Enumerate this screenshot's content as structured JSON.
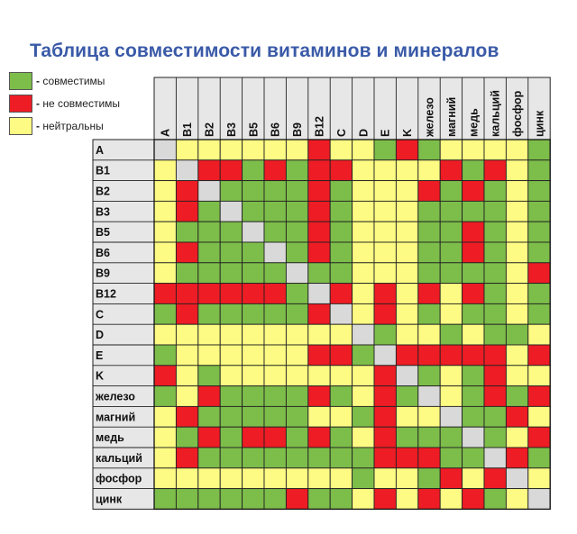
{
  "title": "Таблица совместимости витаминов и минералов",
  "legend": [
    {
      "color": "#7dbd4a",
      "dash": "-",
      "label": "совместимы"
    },
    {
      "color": "#ee1c24",
      "dash": "-",
      "label": "не совместимы"
    },
    {
      "color": "#fdfb83",
      "dash": "-",
      "label": "нейтральны"
    }
  ],
  "colors": {
    "compatible": "#7dbd4a",
    "incompatible": "#ee1c24",
    "neutral": "#fdfb83",
    "self": "#d9d9d9",
    "label_bg": "#e7e7e7"
  },
  "chart_data": {
    "type": "heatmap",
    "encoding": {
      "G": "совместимы",
      "R": "не совместимы",
      "Y": "нейтральны",
      "S": "-"
    },
    "column_labels": [
      "A",
      "B1",
      "B2",
      "B3",
      "B5",
      "B6",
      "B9",
      "B12",
      "C",
      "D",
      "E",
      "K",
      "железо",
      "магний",
      "медь",
      "кальций",
      "фосфор",
      "цинк"
    ],
    "row_labels": [
      "A",
      "B1",
      "B2",
      "B3",
      "B5",
      "B6",
      "B9",
      "B12",
      "C",
      "D",
      "E",
      "K",
      "железо",
      "магний",
      "медь",
      "кальций",
      "фосфор",
      "цинк"
    ],
    "rows": [
      [
        "S",
        "Y",
        "Y",
        "Y",
        "Y",
        "Y",
        "Y",
        "R",
        "Y",
        "Y",
        "G",
        "R",
        "G",
        "Y",
        "Y",
        "Y",
        "Y",
        "G"
      ],
      [
        "Y",
        "S",
        "R",
        "R",
        "G",
        "R",
        "G",
        "R",
        "R",
        "Y",
        "Y",
        "Y",
        "Y",
        "R",
        "G",
        "R",
        "Y",
        "G"
      ],
      [
        "Y",
        "R",
        "S",
        "G",
        "G",
        "G",
        "G",
        "R",
        "G",
        "Y",
        "Y",
        "Y",
        "R",
        "G",
        "R",
        "G",
        "Y",
        "G"
      ],
      [
        "Y",
        "R",
        "G",
        "S",
        "G",
        "G",
        "G",
        "R",
        "G",
        "Y",
        "Y",
        "Y",
        "G",
        "G",
        "G",
        "G",
        "Y",
        "G"
      ],
      [
        "Y",
        "G",
        "G",
        "G",
        "S",
        "G",
        "G",
        "R",
        "G",
        "Y",
        "Y",
        "Y",
        "G",
        "G",
        "R",
        "G",
        "Y",
        "G"
      ],
      [
        "Y",
        "R",
        "G",
        "G",
        "G",
        "S",
        "G",
        "R",
        "G",
        "Y",
        "Y",
        "Y",
        "G",
        "G",
        "R",
        "G",
        "Y",
        "G"
      ],
      [
        "Y",
        "G",
        "G",
        "G",
        "G",
        "G",
        "S",
        "G",
        "G",
        "Y",
        "Y",
        "Y",
        "G",
        "G",
        "G",
        "G",
        "Y",
        "R"
      ],
      [
        "R",
        "R",
        "R",
        "R",
        "R",
        "R",
        "G",
        "S",
        "R",
        "Y",
        "R",
        "Y",
        "R",
        "Y",
        "R",
        "G",
        "Y",
        "G"
      ],
      [
        "G",
        "R",
        "G",
        "G",
        "G",
        "G",
        "G",
        "R",
        "S",
        "Y",
        "R",
        "Y",
        "G",
        "Y",
        "G",
        "G",
        "Y",
        "G"
      ],
      [
        "Y",
        "Y",
        "Y",
        "Y",
        "Y",
        "Y",
        "Y",
        "Y",
        "Y",
        "S",
        "G",
        "Y",
        "Y",
        "G",
        "Y",
        "G",
        "G",
        "Y"
      ],
      [
        "G",
        "Y",
        "Y",
        "Y",
        "Y",
        "Y",
        "Y",
        "R",
        "R",
        "G",
        "S",
        "R",
        "R",
        "R",
        "R",
        "R",
        "Y",
        "R"
      ],
      [
        "R",
        "Y",
        "G",
        "Y",
        "Y",
        "Y",
        "Y",
        "Y",
        "Y",
        "Y",
        "R",
        "S",
        "G",
        "Y",
        "G",
        "R",
        "Y",
        "Y"
      ],
      [
        "G",
        "Y",
        "R",
        "G",
        "G",
        "G",
        "G",
        "R",
        "G",
        "Y",
        "R",
        "G",
        "S",
        "Y",
        "G",
        "R",
        "G",
        "R"
      ],
      [
        "Y",
        "R",
        "G",
        "G",
        "G",
        "G",
        "G",
        "Y",
        "Y",
        "G",
        "R",
        "Y",
        "Y",
        "S",
        "G",
        "G",
        "R",
        "Y"
      ],
      [
        "Y",
        "G",
        "R",
        "G",
        "R",
        "R",
        "G",
        "R",
        "G",
        "Y",
        "R",
        "G",
        "G",
        "G",
        "S",
        "G",
        "Y",
        "R"
      ],
      [
        "Y",
        "R",
        "G",
        "G",
        "G",
        "G",
        "G",
        "G",
        "G",
        "G",
        "R",
        "R",
        "R",
        "G",
        "G",
        "S",
        "R",
        "G"
      ],
      [
        "Y",
        "Y",
        "Y",
        "Y",
        "Y",
        "Y",
        "Y",
        "Y",
        "Y",
        "G",
        "Y",
        "Y",
        "G",
        "R",
        "Y",
        "R",
        "S",
        "Y"
      ],
      [
        "G",
        "G",
        "G",
        "G",
        "G",
        "G",
        "R",
        "G",
        "G",
        "Y",
        "R",
        "Y",
        "R",
        "Y",
        "R",
        "G",
        "Y",
        "S"
      ]
    ]
  }
}
